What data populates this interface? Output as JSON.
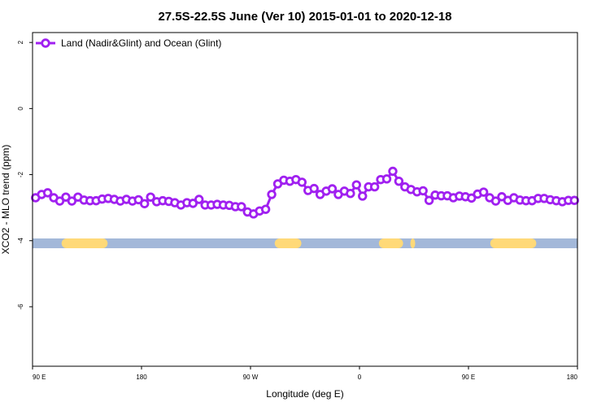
{
  "chart_data": {
    "type": "line",
    "title": "27.5S-22.5S June (Ver 10)   2015-01-01 to 2020-12-18",
    "xlabel": "Longitude (deg E)",
    "ylabel": "XCO2 - MLO trend (ppm)",
    "xlim": [
      90,
      540
    ],
    "ylim": [
      -7.8,
      2.3
    ],
    "x_ticks": [
      {
        "value": 90,
        "label": "90 E"
      },
      {
        "value": 180,
        "label": "180"
      },
      {
        "value": 270,
        "label": "90 W"
      },
      {
        "value": 360,
        "label": "0"
      },
      {
        "value": 450,
        "label": "90 E"
      },
      {
        "value": 540,
        "label": "180"
      }
    ],
    "y_ticks": [
      {
        "value": 2,
        "label": "2"
      },
      {
        "value": 0,
        "label": "0"
      },
      {
        "value": -2,
        "label": "-2"
      },
      {
        "value": -4,
        "label": "-4"
      },
      {
        "value": -6,
        "label": "-6"
      }
    ],
    "legend": {
      "position": "top-left",
      "entries": [
        "Land (Nadir&Glint) and Ocean (Glint)"
      ]
    },
    "grid": false,
    "series": [
      {
        "name": "Land (Nadir&Glint) and Ocean (Glint)",
        "color": "#a020f0",
        "x": [
          92.5,
          97.5,
          102.5,
          107.5,
          112.5,
          117.5,
          122.5,
          127.5,
          132.5,
          137.5,
          142.5,
          147.5,
          152.5,
          157.5,
          162.5,
          167.5,
          172.5,
          177.5,
          182.5,
          187.5,
          192.5,
          197.5,
          202.5,
          207.5,
          212.5,
          217.5,
          222.5,
          227.5,
          232.5,
          237.5,
          242.5,
          247.5,
          252.5,
          257.5,
          262.5,
          267.5,
          272.5,
          277.5,
          282.5,
          287.5,
          292.5,
          297.5,
          302.5,
          307.5,
          312.5,
          317.5,
          322.5,
          327.5,
          332.5,
          337.5,
          342.5,
          347.5,
          352.5,
          357.5,
          362.5,
          367.5,
          372.5,
          377.5,
          382.5,
          387.5,
          392.5,
          397.5,
          402.5,
          407.5,
          412.5,
          417.5,
          422.5,
          427.5,
          432.5,
          437.5,
          442.5,
          447.5,
          452.5,
          457.5,
          462.5,
          467.5,
          472.5,
          477.5,
          482.5,
          487.5,
          492.5,
          497.5,
          502.5,
          507.5,
          512.5,
          517.5,
          522.5,
          527.5,
          532.5,
          537.5
        ],
        "values": [
          -2.7,
          -2.6,
          -2.55,
          -2.7,
          -2.8,
          -2.68,
          -2.8,
          -2.68,
          -2.77,
          -2.79,
          -2.79,
          -2.74,
          -2.72,
          -2.75,
          -2.8,
          -2.75,
          -2.8,
          -2.76,
          -2.88,
          -2.68,
          -2.82,
          -2.79,
          -2.81,
          -2.85,
          -2.92,
          -2.85,
          -2.87,
          -2.75,
          -2.92,
          -2.92,
          -2.9,
          -2.92,
          -2.93,
          -2.97,
          -2.97,
          -3.13,
          -3.19,
          -3.1,
          -3.05,
          -2.6,
          -2.28,
          -2.17,
          -2.2,
          -2.15,
          -2.23,
          -2.48,
          -2.42,
          -2.6,
          -2.5,
          -2.43,
          -2.6,
          -2.5,
          -2.57,
          -2.31,
          -2.65,
          -2.37,
          -2.37,
          -2.15,
          -2.13,
          -1.9,
          -2.2,
          -2.37,
          -2.45,
          -2.52,
          -2.49,
          -2.78,
          -2.62,
          -2.64,
          -2.64,
          -2.7,
          -2.65,
          -2.67,
          -2.71,
          -2.59,
          -2.53,
          -2.7,
          -2.8,
          -2.67,
          -2.78,
          -2.7,
          -2.77,
          -2.79,
          -2.79,
          -2.72,
          -2.72,
          -2.76,
          -2.79,
          -2.82,
          -2.78,
          -2.78
        ]
      }
    ],
    "surface_bar": {
      "y_center": -4.08,
      "ocean_color": "#a3b8d9",
      "land_color": "#ffd978",
      "land_segments": [
        [
          114,
          152
        ],
        [
          290,
          312
        ],
        [
          376,
          396
        ],
        [
          402,
          406
        ],
        [
          468,
          506
        ]
      ]
    }
  }
}
